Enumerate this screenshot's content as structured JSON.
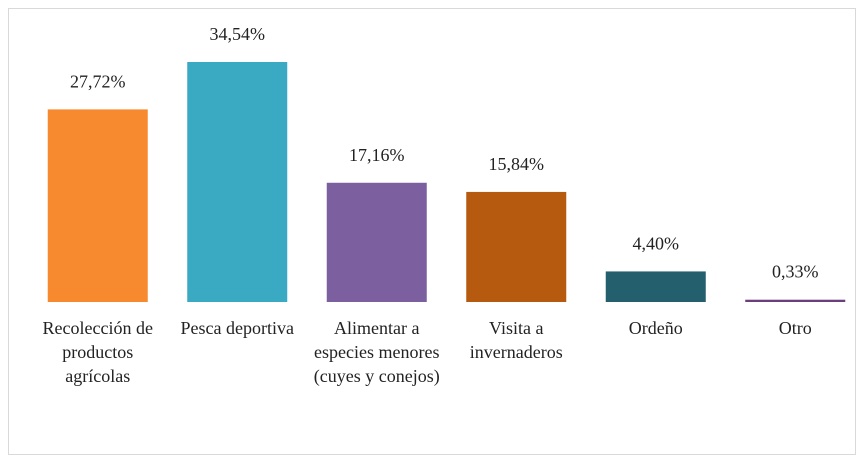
{
  "chart_data": {
    "type": "bar",
    "categories": [
      "Recolección de productos agrícolas",
      "Pesca deportiva",
      "Alimentar a especies menores (cuyes y conejos)",
      "Visita a invernaderos",
      "Ordeño",
      "Otro"
    ],
    "values": [
      27.72,
      34.54,
      17.16,
      15.84,
      4.4,
      0.33
    ],
    "value_labels": [
      "27,72%",
      "34,54%",
      "17,16%",
      "15,84%",
      "4,40%",
      "0,33%"
    ],
    "colors": [
      "#f7892f",
      "#3aa9c2",
      "#7c5f9f",
      "#b65a10",
      "#245f6d",
      "#6b3f7b"
    ]
  }
}
